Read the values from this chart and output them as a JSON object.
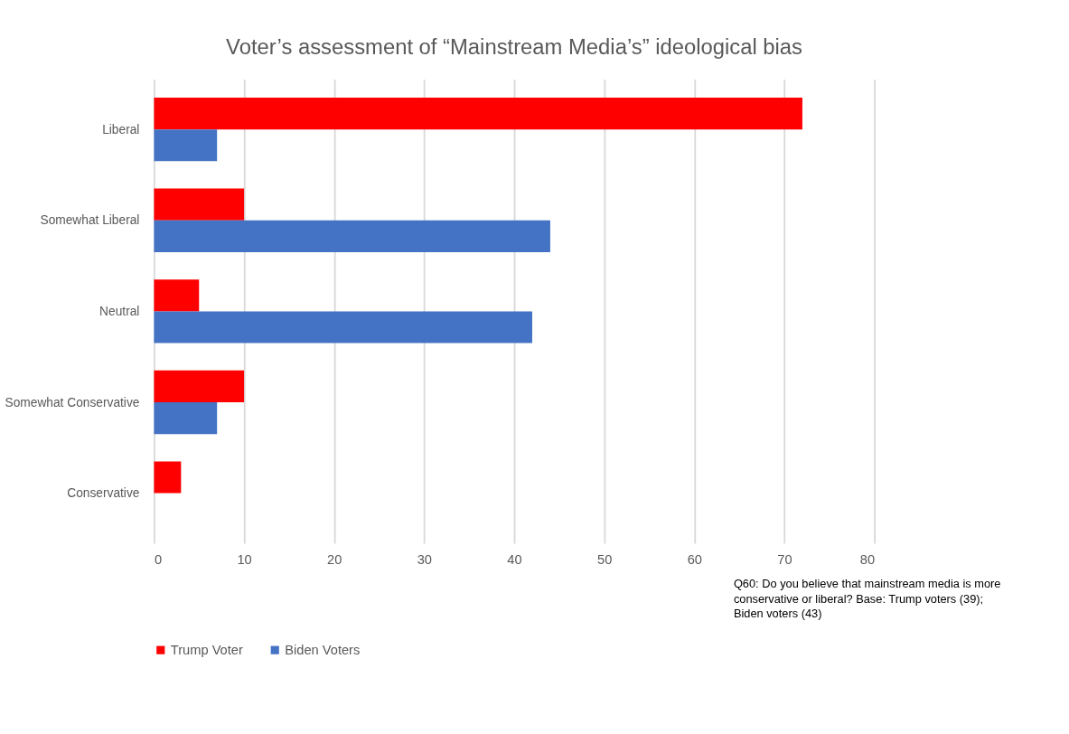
{
  "chart_data": {
    "type": "bar",
    "orientation": "horizontal",
    "title": "Voter’s assessment of “Mainstream Media’s” ideological bias",
    "categories": [
      "Liberal",
      "Somewhat Liberal",
      "Neutral",
      "Somewhat Conservative",
      "Conservative"
    ],
    "series": [
      {
        "name": "Trump Voter",
        "color": "#ff0000",
        "values": [
          72,
          10,
          5,
          10,
          3
        ]
      },
      {
        "name": "Biden Voters",
        "color": "#4472c4",
        "values": [
          7,
          44,
          42,
          7,
          0
        ]
      }
    ],
    "xlim": [
      0,
      80
    ],
    "xticks": [
      0,
      10,
      20,
      30,
      40,
      50,
      60,
      70,
      80
    ],
    "grid": "x",
    "legend": "bottom",
    "annotations": [
      "Q60: Do you believe that mainstream media is more conservative or liberal? Base: Trump voters (39); Biden voters (43)"
    ]
  }
}
